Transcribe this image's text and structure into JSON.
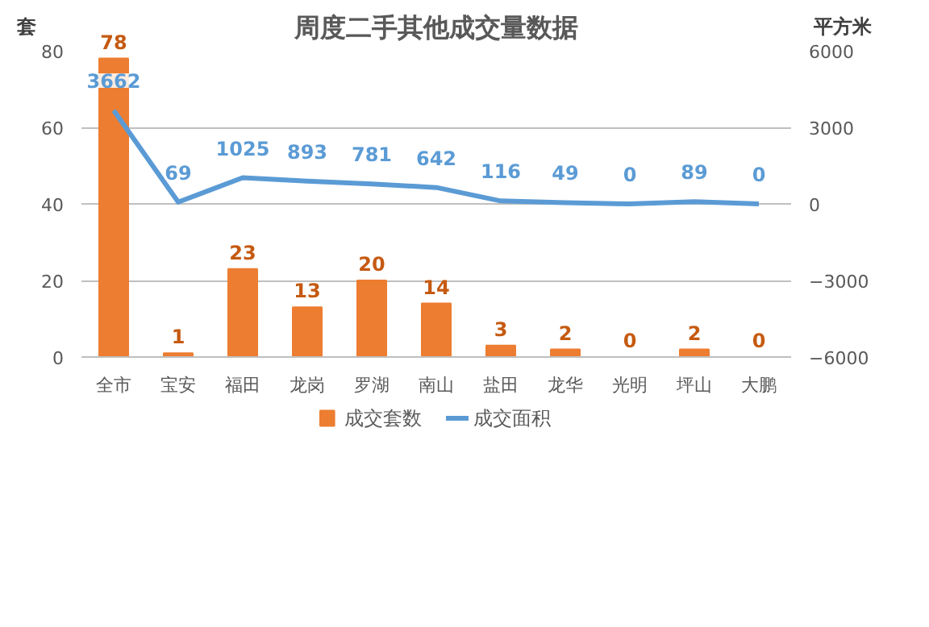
{
  "chart_data": {
    "type": "bar",
    "title": "周度二手其他成交量数据",
    "ylabel": "套",
    "y2label": "平方米",
    "categories": [
      "全市",
      "宝安",
      "福田",
      "龙岗",
      "罗湖",
      "南山",
      "盐田",
      "龙华",
      "光明",
      "坪山",
      "大鹏"
    ],
    "series": [
      {
        "name": "成交套数",
        "color": "#ed7d31",
        "values": [
          78,
          1,
          23,
          13,
          20,
          14,
          3,
          2,
          0,
          2,
          0
        ]
      },
      {
        "name": "成交面积",
        "type": "line",
        "axis": "y2",
        "color": "#5b9bd5",
        "values": [
          3662,
          69,
          1025,
          893,
          781,
          642,
          116,
          49,
          0,
          89,
          0
        ]
      }
    ],
    "ylim": [
      0,
      80
    ],
    "yticks": [
      0,
      20,
      40,
      60,
      80
    ],
    "y2lim": [
      -6000,
      6000
    ],
    "y2ticks": [
      -6000,
      -3000,
      0,
      3000,
      6000
    ],
    "grid": "y",
    "legend": "bottom",
    "data_labels": true,
    "marker": "none",
    "line_style": "solid"
  }
}
